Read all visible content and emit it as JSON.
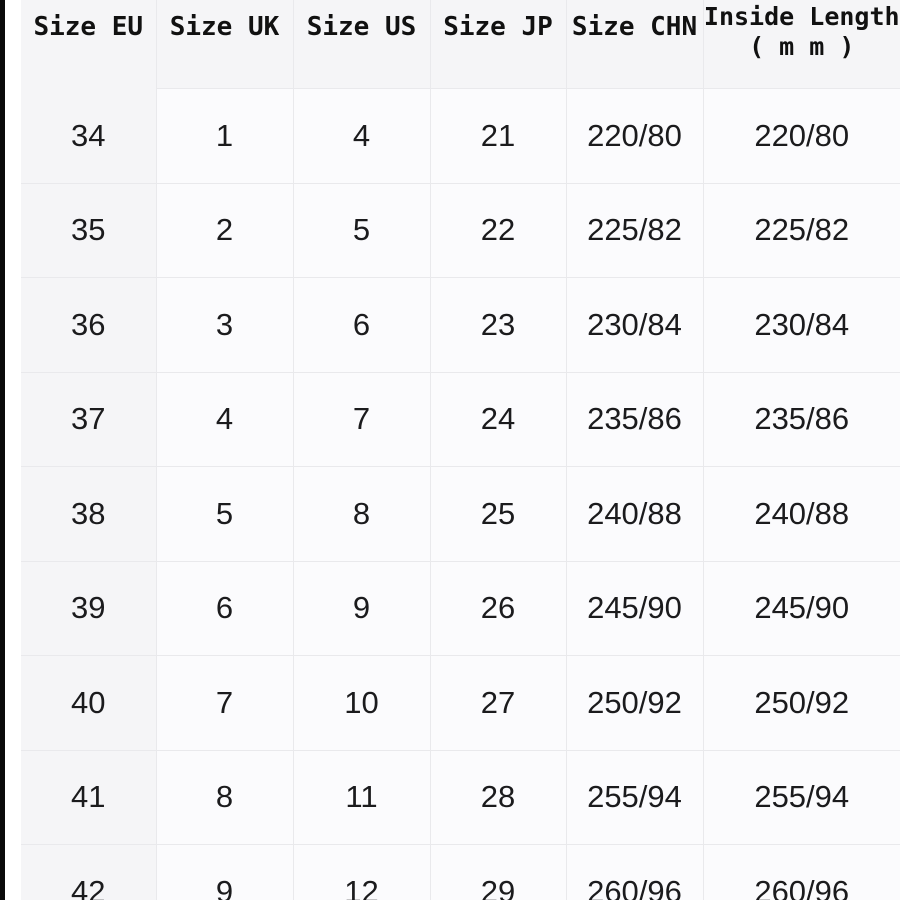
{
  "meta": {
    "description": "Shoe size conversion chart"
  },
  "colors": {
    "edge-bar": "#0a0a0a",
    "panel": "#f5f5f7",
    "cell": "#fbfbfd",
    "grid": "#e9e9ec",
    "header-text": "#111111",
    "body-text": "#1b1b1d"
  },
  "chart_data": {
    "type": "table",
    "columns": [
      {
        "key": "size-eu",
        "label": "Size EU"
      },
      {
        "key": "size-uk",
        "label": "Size UK"
      },
      {
        "key": "size-us",
        "label": "Size US"
      },
      {
        "key": "size-jp",
        "label": "Size JP"
      },
      {
        "key": "size-chn",
        "label": "Size CHN"
      },
      {
        "key": "inside-length",
        "label": "Inside Length",
        "label_line2": "( m m )"
      }
    ],
    "rows": [
      [
        "34",
        "1",
        "4",
        "21",
        "220/80",
        "220/80"
      ],
      [
        "35",
        "2",
        "5",
        "22",
        "225/82",
        "225/82"
      ],
      [
        "36",
        "3",
        "6",
        "23",
        "230/84",
        "230/84"
      ],
      [
        "37",
        "4",
        "7",
        "24",
        "235/86",
        "235/86"
      ],
      [
        "38",
        "5",
        "8",
        "25",
        "240/88",
        "240/88"
      ],
      [
        "39",
        "6",
        "9",
        "26",
        "245/90",
        "245/90"
      ],
      [
        "40",
        "7",
        "10",
        "27",
        "250/92",
        "250/92"
      ],
      [
        "41",
        "8",
        "11",
        "28",
        "255/94",
        "255/94"
      ],
      [
        "42",
        "9",
        "12",
        "29",
        "260/96",
        "260/96"
      ]
    ]
  }
}
